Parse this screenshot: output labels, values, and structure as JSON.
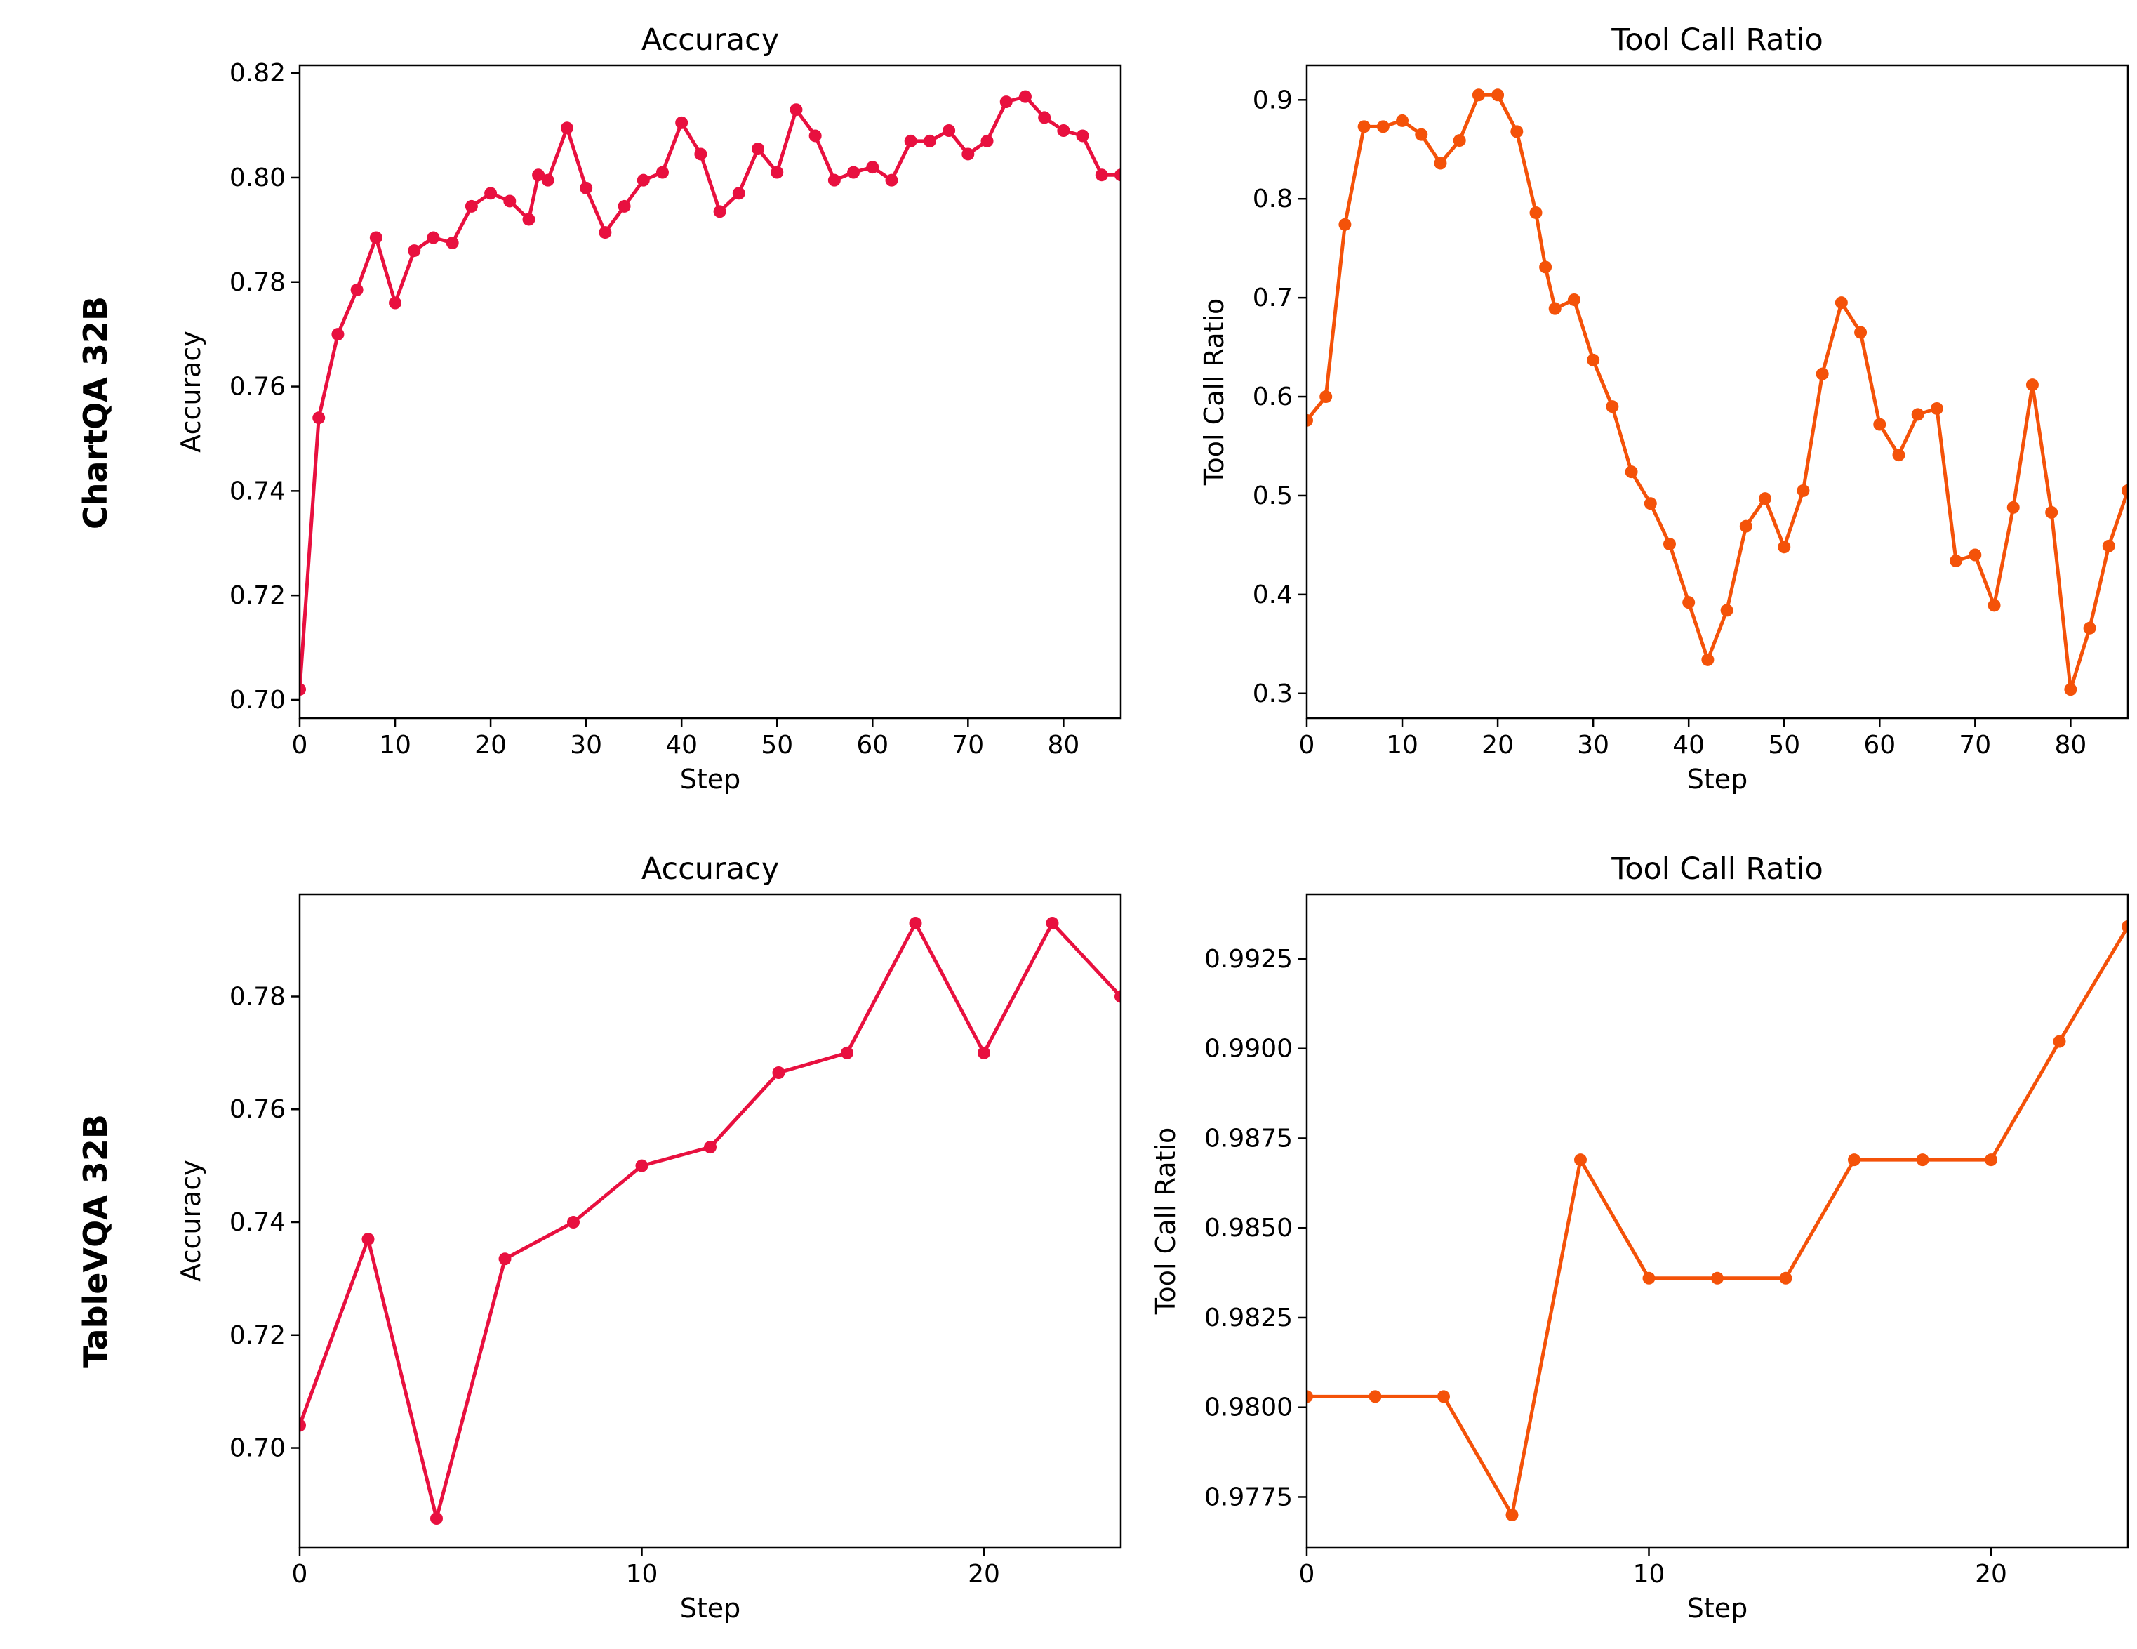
{
  "row_labels": [
    "ChartQA 32B",
    "TableVQA 32B"
  ],
  "chart_data": [
    {
      "type": "line",
      "row": "ChartQA 32B",
      "title": "Accuracy",
      "xlabel": "Step",
      "ylabel": "Accuracy",
      "color": "#e8103f",
      "xlim": [
        0,
        86
      ],
      "ylim": [
        0.6965,
        0.8215
      ],
      "xticks": [
        0,
        10,
        20,
        30,
        40,
        50,
        60,
        70,
        80
      ],
      "yticks": [
        "0.70",
        "0.72",
        "0.74",
        "0.76",
        "0.78",
        "0.80",
        "0.82"
      ],
      "x": [
        0,
        2,
        4,
        6,
        8,
        10,
        12,
        14,
        16,
        18,
        20,
        22,
        24,
        25,
        26,
        28,
        30,
        32,
        34,
        36,
        38,
        40,
        42,
        44,
        46,
        48,
        50,
        52,
        54,
        56,
        58,
        60,
        62,
        64,
        66,
        68,
        70,
        72,
        74,
        76,
        78,
        80,
        82,
        84,
        86
      ],
      "y": [
        0.702,
        0.754,
        0.77,
        0.7785,
        0.7885,
        0.776,
        0.786,
        0.7885,
        0.7875,
        0.7945,
        0.797,
        0.7955,
        0.792,
        0.8005,
        0.7995,
        0.8095,
        0.798,
        0.7895,
        0.7945,
        0.7995,
        0.801,
        0.8105,
        0.8045,
        0.7935,
        0.797,
        0.8055,
        0.801,
        0.813,
        0.808,
        0.7995,
        0.801,
        0.802,
        0.7995,
        0.807,
        0.807,
        0.809,
        0.8045,
        0.807,
        0.8145,
        0.8155,
        0.8115,
        0.809,
        0.808,
        0.8005,
        0.8005
      ]
    },
    {
      "type": "line",
      "row": "ChartQA 32B",
      "title": "Tool Call Ratio",
      "xlabel": "Step",
      "ylabel": "Tool Call Ratio",
      "color": "#f45209",
      "xlim": [
        0,
        86
      ],
      "ylim": [
        0.275,
        0.935
      ],
      "xticks": [
        0,
        10,
        20,
        30,
        40,
        50,
        60,
        70,
        80
      ],
      "yticks": [
        "0.3",
        "0.4",
        "0.5",
        "0.6",
        "0.7",
        "0.8",
        "0.9"
      ],
      "x": [
        0,
        2,
        4,
        6,
        8,
        10,
        12,
        14,
        16,
        18,
        20,
        22,
        24,
        25,
        26,
        28,
        30,
        32,
        34,
        36,
        38,
        40,
        42,
        44,
        46,
        48,
        50,
        52,
        54,
        56,
        58,
        60,
        62,
        64,
        66,
        68,
        70,
        72,
        74,
        76,
        78,
        80,
        82,
        84,
        86
      ],
      "y": [
        0.576,
        0.6,
        0.774,
        0.873,
        0.873,
        0.879,
        0.865,
        0.836,
        0.859,
        0.905,
        0.905,
        0.868,
        0.786,
        0.731,
        0.689,
        0.698,
        0.637,
        0.59,
        0.524,
        0.492,
        0.451,
        0.392,
        0.334,
        0.384,
        0.469,
        0.497,
        0.448,
        0.505,
        0.623,
        0.695,
        0.665,
        0.572,
        0.541,
        0.582,
        0.588,
        0.434,
        0.44,
        0.389,
        0.488,
        0.612,
        0.483,
        0.304,
        0.366,
        0.449,
        0.505
      ]
    },
    {
      "type": "line",
      "row": "TableVQA 32B",
      "title": "Accuracy",
      "xlabel": "Step",
      "ylabel": "Accuracy",
      "color": "#e8103f",
      "xlim": [
        0,
        24
      ],
      "ylim": [
        0.6824,
        0.7981
      ],
      "xticks": [
        0,
        10,
        20
      ],
      "yticks": [
        "0.70",
        "0.72",
        "0.74",
        "0.76",
        "0.78"
      ],
      "x": [
        0,
        2,
        4,
        6,
        8,
        10,
        12,
        14,
        16,
        18,
        20,
        22,
        24
      ],
      "y": [
        0.704,
        0.737,
        0.6875,
        0.7335,
        0.74,
        0.75,
        0.7533,
        0.7665,
        0.77,
        0.793,
        0.77,
        0.793,
        0.78
      ]
    },
    {
      "type": "line",
      "row": "TableVQA 32B",
      "title": "Tool Call Ratio",
      "xlabel": "Step",
      "ylabel": "Tool Call Ratio",
      "color": "#f45209",
      "xlim": [
        0,
        24
      ],
      "ylim": [
        0.9761,
        0.9943
      ],
      "xticks": [
        0,
        10,
        20
      ],
      "yticks": [
        "0.9775",
        "0.9800",
        "0.9825",
        "0.9850",
        "0.9875",
        "0.9900",
        "0.9925"
      ],
      "x": [
        0,
        2,
        4,
        6,
        8,
        10,
        12,
        14,
        16,
        18,
        20,
        22,
        24
      ],
      "y": [
        0.9803,
        0.9803,
        0.9803,
        0.977,
        0.9869,
        0.9836,
        0.9836,
        0.9836,
        0.9869,
        0.9869,
        0.9869,
        0.9902,
        0.9934
      ]
    }
  ]
}
